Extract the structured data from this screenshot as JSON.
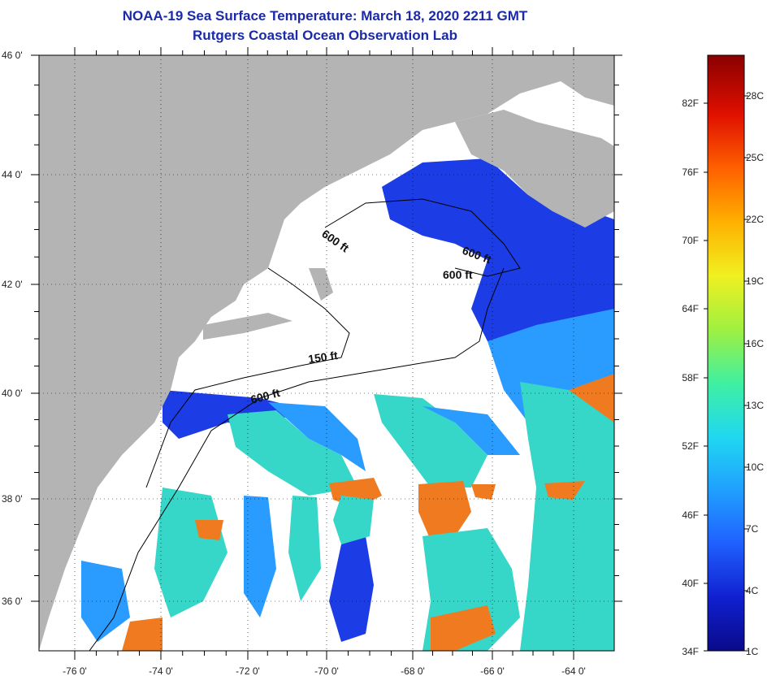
{
  "header": {
    "title_line1": "NOAA-19 Sea Surface Temperature:  March 18, 2020 2211 GMT",
    "title_line2": "Rutgers Coastal Ocean Observation Lab"
  },
  "map": {
    "lon_labels": [
      "-76 0'",
      "-74 0'",
      "-72 0'",
      "-70 0'",
      "-68 0'",
      "-66 0'",
      "-64 0'"
    ],
    "lat_labels": [
      "46 0'",
      "44 0'",
      "42 0'",
      "40 0'",
      "38 0'",
      "36 0'"
    ],
    "contour_labels": [
      "600 ft",
      "600 ft",
      "600 ft",
      "150 ft",
      "600 ft"
    ],
    "colors": {
      "land": "#b4b4b4",
      "cloud_mask": "#ffffff",
      "cold_water": "#1c3ce6",
      "cool_water": "#2a9cff",
      "mid_water": "#36d6c8",
      "warm_water": "#f07a20",
      "contour": "#000000"
    }
  },
  "colorbar": {
    "fahrenheit_labels": [
      "82F",
      "76F",
      "70F",
      "64F",
      "58F",
      "52F",
      "46F",
      "40F",
      "34F"
    ],
    "celsius_labels": [
      "28C",
      "25C",
      "22C",
      "19C",
      "16C",
      "13C",
      "10C",
      "7C",
      "4C",
      "1C"
    ],
    "gradient_colors": [
      "#0a0a8a",
      "#1020d0",
      "#2060ff",
      "#20a0ff",
      "#20d8f0",
      "#40f0a0",
      "#a0f040",
      "#f0f020",
      "#ffb000",
      "#ff6000",
      "#e01000",
      "#8a0000"
    ]
  }
}
